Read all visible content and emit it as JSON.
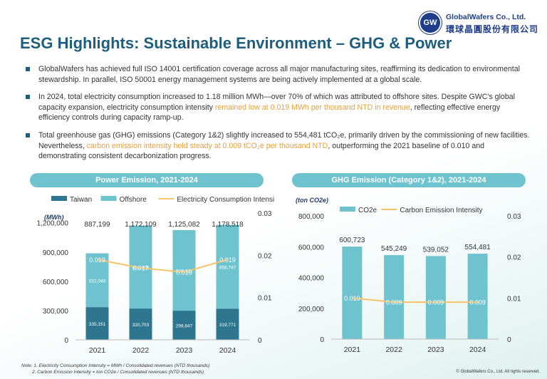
{
  "header": {
    "title": "ESG Highlights: Sustainable Environment – GHG & Power",
    "logo_initials": "GW",
    "logo_en": "GlobalWafers Co., Ltd.",
    "logo_zh": "環球晶圓股份有限公司"
  },
  "bullets": [
    {
      "pre": "GlobalWafers has achieved full ISO 14001 certification coverage across all major manufacturing sites, reaffirming its dedication to environmental stewardship. In parallel, ISO 50001 energy management systems are being actively implemented at a global scale.",
      "hl": "",
      "post": ""
    },
    {
      "pre": "In 2024, total electricity consumption increased to 1.18 million MWh—over 70% of which was attributed to offshore sites. Despite GWC's global capacity expansion, electricity consumption intensity ",
      "hl": "remained low at 0.019 MWh per thousand NTD in revenue",
      "post": ", reflecting effective energy efficiency controls during capacity ramp-up."
    },
    {
      "pre": "Total greenhouse gas (GHG) emissions (Category 1&2) slightly increased to 554,481 tCO₂e, primarily driven by the commissioning of new facilities. Nevertheless, ",
      "hl": "carbon emission intensity held steady at 0.009 tCO₂e per thousand NTD",
      "post": ", outperforming the 2021 baseline of 0.010 and demonstrating consistent decarbonization progress."
    }
  ],
  "colors": {
    "taiwan": "#2e7590",
    "offshore": "#6fc3cf",
    "line": "#f5c46a",
    "label_orange": "#e8a03a",
    "text_dark": "#1f3d6b"
  },
  "chart_data": [
    {
      "type": "bar",
      "title": "Power Emission, 2021-2024",
      "stacked": true,
      "categories": [
        "2021",
        "2022",
        "2023",
        "2024"
      ],
      "series": [
        {
          "name": "Taiwan",
          "values": [
            335151,
            320703,
            298847,
            319771
          ],
          "labels": [
            "335,151",
            "320,703",
            "298,847",
            "319,771"
          ]
        },
        {
          "name": "Offshore",
          "values": [
            552048,
            851406,
            826235,
            858747
          ],
          "labels": [
            "552,048",
            "851,406",
            "826,235",
            "858,747"
          ]
        }
      ],
      "totals": [
        "887,199",
        "1,172,109",
        "1,125,082",
        "1,178,518"
      ],
      "line": {
        "name": "Electricity Consumption Intensity",
        "values": [
          0.019,
          0.017,
          0.016,
          0.019
        ],
        "labels": [
          "0.019",
          "0.017",
          "0.016",
          "0.019"
        ]
      },
      "ylabel": "(MWh)",
      "yticks": [
        "0",
        "300,000",
        "600,000",
        "900,000",
        "1,200,000"
      ],
      "ylim": [
        0,
        1300000
      ],
      "y2ticks": [
        "0",
        "0.01",
        "0.02",
        "0.03"
      ],
      "y2lim": [
        0,
        0.03
      ],
      "legend_position": "top"
    },
    {
      "type": "bar",
      "title": "GHG Emission (Category 1&2), 2021-2024",
      "categories": [
        "2021",
        "2022",
        "2023",
        "2024"
      ],
      "series": [
        {
          "name": "CO2e",
          "values": [
            600723,
            545249,
            539052,
            554481
          ],
          "labels": [
            "600,723",
            "545,249",
            "539,052",
            "554,481"
          ]
        }
      ],
      "line": {
        "name": "Carbon Emission Intensity",
        "values": [
          0.01,
          0.009,
          0.009,
          0.009
        ],
        "labels": [
          "0.010",
          "0.009",
          "0.009",
          "0.009"
        ]
      },
      "ylabel": "(ton CO2e)",
      "yticks": [
        "0",
        "200,000",
        "400,000",
        "600,000",
        "800,000"
      ],
      "ylim": [
        0,
        800000
      ],
      "y2ticks": [
        "0",
        "0.01",
        "0.02",
        "0.03"
      ],
      "y2lim": [
        0,
        0.03
      ],
      "legend_position": "top"
    }
  ],
  "footer": {
    "note_1": "Note: 1. Electricity Consumption Intensity = MWh / Consolidated revenues (NTD thousands)",
    "note_2": "2. Carbon Emission Intensity = ton CO2e / Consolidated revenues (NTD thousands)",
    "copyright": "© GlobalWafers Co., Ltd. All rights reserved."
  }
}
